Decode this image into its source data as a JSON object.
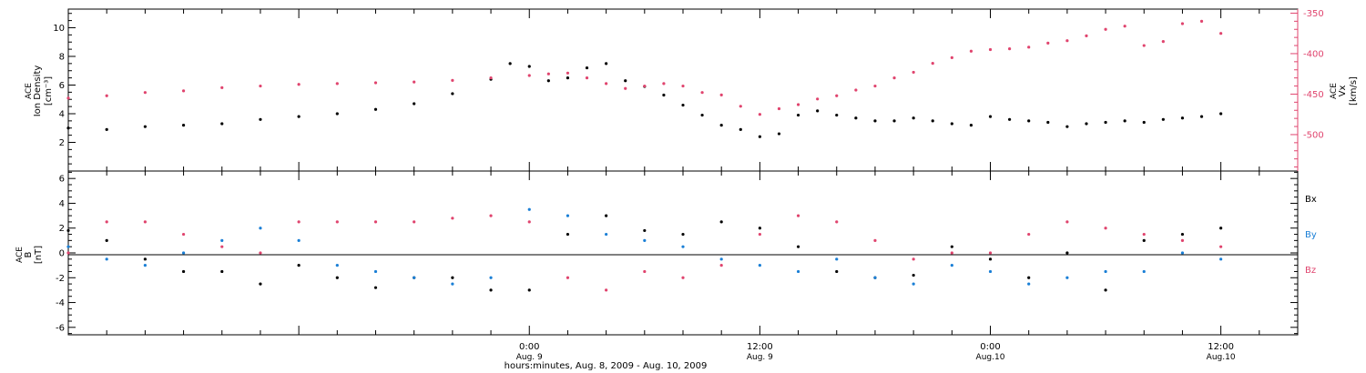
{
  "colors": {
    "black": "#000000",
    "pink": "#e0446e",
    "blue": "#1a7fd6"
  },
  "chart_data": [
    {
      "type": "scatter",
      "panel": "top",
      "ylabel_left": [
        "ACE",
        "Ion Density",
        "[cm⁻³]"
      ],
      "ylabel_right": [
        "ACE",
        "Vx",
        "[km/s]"
      ],
      "ylim_left": [
        0,
        11.3
      ],
      "ylim_right": [
        -545,
        -345
      ],
      "yticks_left": [
        2,
        4,
        6,
        8,
        10
      ],
      "yticks_right": [
        -350,
        -400,
        -450,
        -500
      ],
      "series": [
        {
          "color": "#000000",
          "axis": "left",
          "x": [
            -24,
            -22,
            -20,
            -18,
            -16,
            -14,
            -12,
            -10,
            -8,
            -6,
            -4,
            -2,
            -1,
            0,
            1,
            2,
            3,
            4,
            5,
            6,
            7,
            8,
            9,
            10,
            11,
            12,
            13,
            14,
            15,
            16,
            17,
            18,
            19,
            20,
            21,
            22,
            23,
            24,
            25,
            26,
            27,
            28,
            29,
            30,
            31,
            32,
            33,
            34,
            35,
            36
          ],
          "y": [
            3.0,
            2.9,
            3.1,
            3.2,
            3.3,
            3.6,
            3.8,
            4.0,
            4.3,
            4.7,
            5.4,
            6.4,
            7.5,
            7.3,
            6.3,
            6.5,
            7.2,
            7.5,
            6.3,
            5.9,
            5.3,
            4.6,
            3.9,
            3.2,
            2.9,
            2.4,
            2.6,
            3.9,
            4.2,
            3.9,
            3.7,
            3.5,
            3.5,
            3.7,
            3.5,
            3.3,
            3.2,
            3.8,
            3.6,
            3.5,
            3.4,
            3.1,
            3.3,
            3.4,
            3.5,
            3.4,
            3.6,
            3.7,
            3.8,
            4.0
          ]
        },
        {
          "color": "#e0446e",
          "axis": "right",
          "x": [
            -24,
            -22,
            -20,
            -18,
            -16,
            -14,
            -12,
            -10,
            -8,
            -6,
            -4,
            -2,
            0,
            1,
            2,
            3,
            4,
            5,
            6,
            7,
            8,
            9,
            10,
            11,
            12,
            13,
            14,
            15,
            16,
            17,
            18,
            19,
            20,
            21,
            22,
            23,
            24,
            25,
            26,
            27,
            28,
            29,
            30,
            31,
            32,
            33,
            34,
            35,
            36
          ],
          "y": [
            -455,
            -452,
            -448,
            -446,
            -442,
            -440,
            -438,
            -437,
            -436,
            -435,
            -433,
            -430,
            -427,
            -425,
            -424,
            -430,
            -437,
            -443,
            -440,
            -437,
            -440,
            -448,
            -451,
            -465,
            -475,
            -468,
            -463,
            -456,
            -452,
            -445,
            -440,
            -430,
            -423,
            -412,
            -405,
            -397,
            -395,
            -394,
            -392,
            -387,
            -384,
            -378,
            -370,
            -366,
            -390,
            -385,
            -363,
            -360,
            -375
          ]
        }
      ]
    },
    {
      "type": "scatter",
      "panel": "bottom",
      "ylabel": [
        "ACE",
        "B",
        "[nT]"
      ],
      "ylim": [
        -6.6,
        6.6
      ],
      "yticks": [
        -6,
        -4,
        -2,
        0,
        2,
        4,
        6
      ],
      "zero_line": true,
      "legend": [
        "Bx",
        "By",
        "Bz"
      ],
      "series": [
        {
          "name": "Bx",
          "color": "#000000",
          "x": [
            -24,
            -22,
            -20,
            -18,
            -16,
            -14,
            -12,
            -10,
            -8,
            -6,
            -4,
            -2,
            0,
            2,
            4,
            6,
            8,
            10,
            12,
            14,
            16,
            18,
            20,
            22,
            24,
            26,
            28,
            30,
            32,
            34,
            36
          ],
          "y": [
            1.8,
            1.0,
            -0.5,
            -1.5,
            -1.5,
            -2.5,
            -1.0,
            -2.0,
            -2.8,
            -2.0,
            -2.0,
            -3.0,
            -3.0,
            1.5,
            3.0,
            1.8,
            1.5,
            2.5,
            2.0,
            0.5,
            -1.5,
            -2.0,
            -1.8,
            0.5,
            -0.5,
            -2.0,
            0.0,
            -3.0,
            1.0,
            1.5,
            2.0
          ]
        },
        {
          "name": "By",
          "color": "#1a7fd6",
          "x": [
            -24,
            -22,
            -20,
            -18,
            -16,
            -14,
            -12,
            -10,
            -8,
            -6,
            -4,
            -2,
            0,
            2,
            4,
            6,
            8,
            10,
            12,
            14,
            16,
            18,
            20,
            22,
            24,
            26,
            28,
            30,
            32,
            34,
            36
          ],
          "y": [
            0.5,
            -0.5,
            -1.0,
            0.0,
            1.0,
            2.0,
            1.0,
            -1.0,
            -1.5,
            -2.0,
            -2.5,
            -2.0,
            3.5,
            3.0,
            1.5,
            1.0,
            0.5,
            -0.5,
            -1.0,
            -1.5,
            -0.5,
            -2.0,
            -2.5,
            -1.0,
            -1.5,
            -2.5,
            -2.0,
            -1.5,
            -1.5,
            0.0,
            -0.5
          ]
        },
        {
          "name": "Bz",
          "color": "#e0446e",
          "x": [
            -24,
            -22,
            -20,
            -18,
            -16,
            -14,
            -12,
            -10,
            -8,
            -6,
            -4,
            -2,
            0,
            2,
            4,
            6,
            8,
            10,
            12,
            14,
            16,
            18,
            20,
            22,
            24,
            26,
            28,
            30,
            32,
            34,
            36
          ],
          "y": [
            0.0,
            2.5,
            2.5,
            1.5,
            0.5,
            0.0,
            2.5,
            2.5,
            2.5,
            2.5,
            2.8,
            3.0,
            2.5,
            -2.0,
            -3.0,
            -1.5,
            -2.0,
            -1.0,
            1.5,
            3.0,
            2.5,
            1.0,
            -0.5,
            0.0,
            0.0,
            1.5,
            2.5,
            2.0,
            1.5,
            1.0,
            0.5
          ]
        }
      ]
    }
  ],
  "xaxis": {
    "xlim": [
      -24,
      40
    ],
    "ticks": [
      {
        "x": 0,
        "time": "0:00",
        "date": "Aug. 9"
      },
      {
        "x": 12,
        "time": "12:00",
        "date": "Aug. 9"
      },
      {
        "x": 24,
        "time": "0:00",
        "date": "Aug.10"
      },
      {
        "x": 36,
        "time": "12:00",
        "date": "Aug.10"
      }
    ],
    "title": "hours:minutes, Aug.  8, 2009 - Aug. 10, 2009"
  }
}
